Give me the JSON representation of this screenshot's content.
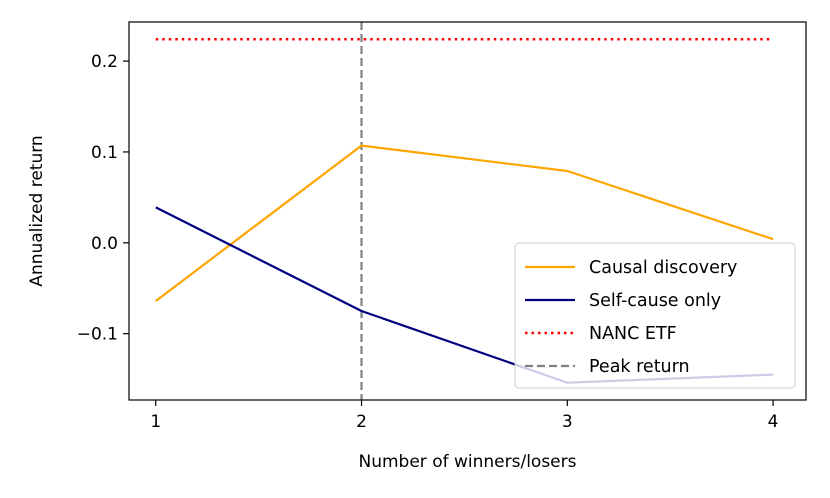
{
  "chart_data": {
    "type": "line",
    "title": "",
    "xlabel": "Number of winners/losers",
    "ylabel": "Annualized return",
    "x": [
      1,
      2,
      3,
      4
    ],
    "xticks": [
      "1",
      "2",
      "3",
      "4"
    ],
    "yticks": [
      -0.1,
      0.0,
      0.1,
      0.2
    ],
    "ytick_labels": [
      "−0.1",
      "0.0",
      "0.1",
      "0.2"
    ],
    "xlim": [
      0.87,
      4.16
    ],
    "ylim": [
      -0.173,
      0.243
    ],
    "grid": false,
    "legend_position": "lower-right",
    "series": [
      {
        "name": "Causal discovery",
        "values": [
          -0.064,
          0.107,
          0.079,
          0.004
        ],
        "color": "#ffa500",
        "style": "solid"
      },
      {
        "name": "Self-cause only",
        "values": [
          0.039,
          -0.075,
          -0.154,
          -0.145
        ],
        "color": "#000080",
        "style": "solid"
      }
    ],
    "reference_lines": [
      {
        "name": "NANC ETF",
        "orientation": "horizontal",
        "value": 0.224,
        "color": "#ff0000",
        "style": "dotted"
      },
      {
        "name": "Peak return",
        "orientation": "vertical",
        "value": 2,
        "color": "#808080",
        "style": "dashed"
      }
    ]
  }
}
